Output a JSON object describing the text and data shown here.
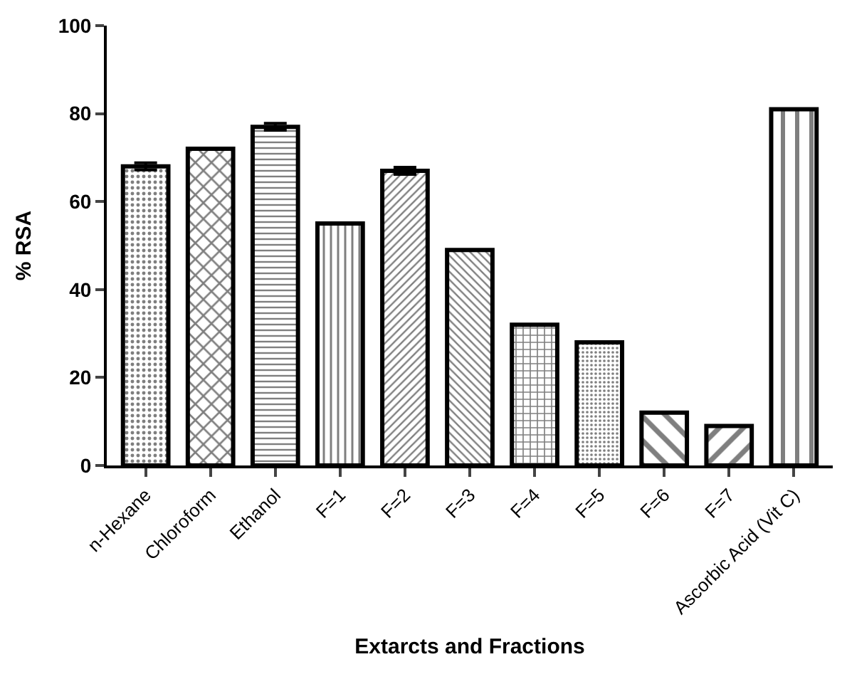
{
  "chart_data": {
    "type": "bar",
    "xlabel": "Extarcts and Fractions",
    "ylabel": "% RSA",
    "categories": [
      "n-Hexane",
      "Chloroform",
      "Ethanol",
      "F=1",
      "F=2",
      "F=3",
      "F=4",
      "F=5",
      "F=6",
      "F=7",
      "Ascorbic Acid (Vit C)"
    ],
    "values": [
      68,
      72,
      77,
      55,
      67,
      49,
      32,
      28,
      12,
      9,
      81
    ],
    "errors": [
      0.8,
      null,
      0.8,
      null,
      0.8,
      null,
      null,
      null,
      null,
      null,
      null
    ],
    "color": "#000000",
    "ylim": [
      0,
      100
    ],
    "yticks": [
      0,
      20,
      40,
      60,
      80,
      100
    ],
    "legend": false
  }
}
